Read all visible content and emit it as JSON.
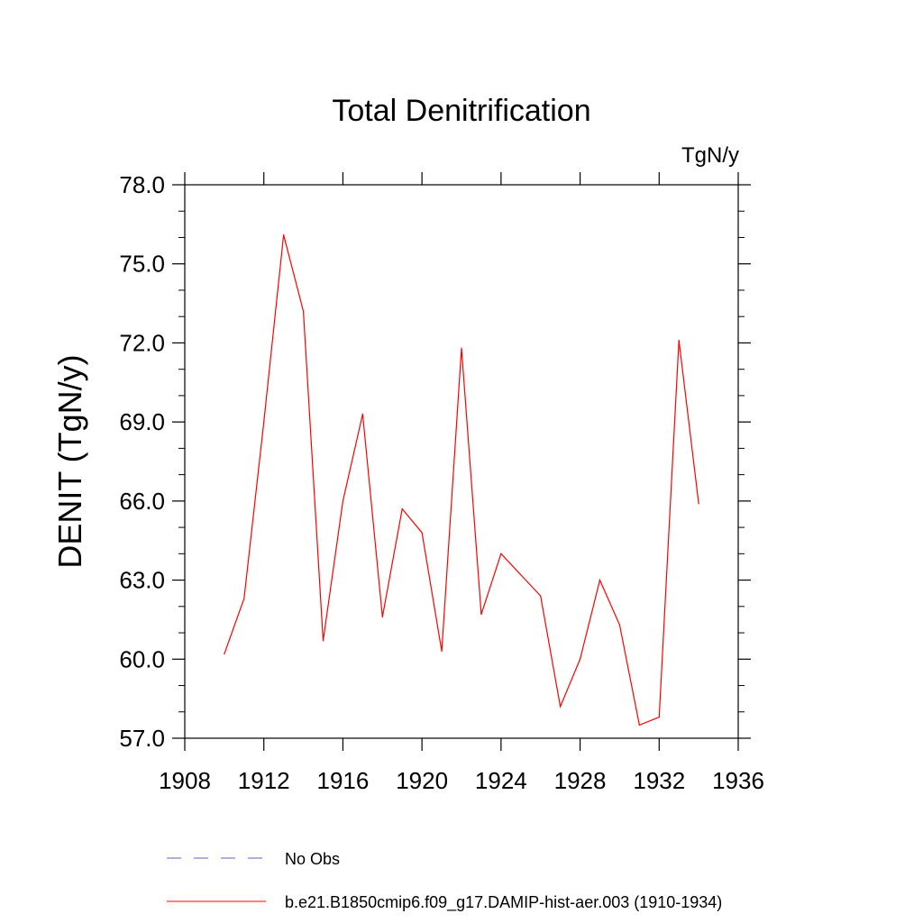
{
  "chart_data": {
    "type": "line",
    "title": "Total Denitrification",
    "units_label": "TgN/y",
    "ylabel": "DENIT  (TgN/y)",
    "xlabel": "",
    "xlim": [
      1908,
      1936
    ],
    "ylim": [
      57.0,
      78.0
    ],
    "x_ticks": [
      1908,
      1912,
      1916,
      1920,
      1924,
      1928,
      1932,
      1936
    ],
    "y_ticks": [
      "57.0",
      "60.0",
      "63.0",
      "66.0",
      "69.0",
      "72.0",
      "75.0",
      "78.0"
    ],
    "grid": false,
    "legend_position": "bottom",
    "series": [
      {
        "name": "b.e21.B1850cmip6.f09_g17.DAMIP-hist-aer.003 (1910-1934)",
        "color": "#ff0000",
        "style": "solid",
        "x": [
          1910,
          1911,
          1912,
          1913,
          1914,
          1915,
          1916,
          1917,
          1918,
          1919,
          1920,
          1921,
          1922,
          1923,
          1924,
          1925,
          1926,
          1927,
          1928,
          1929,
          1930,
          1931,
          1932,
          1933,
          1934
        ],
        "y": [
          60.2,
          62.3,
          69.0,
          76.1,
          73.2,
          60.7,
          66.0,
          69.3,
          61.6,
          65.7,
          64.8,
          60.3,
          71.8,
          61.7,
          64.0,
          63.2,
          62.4,
          58.2,
          60.0,
          63.0,
          61.3,
          57.5,
          57.8,
          72.1,
          65.9
        ]
      },
      {
        "name": "No Obs",
        "color": "#6a5acd",
        "style": "dashed",
        "x": [],
        "y": []
      }
    ]
  }
}
